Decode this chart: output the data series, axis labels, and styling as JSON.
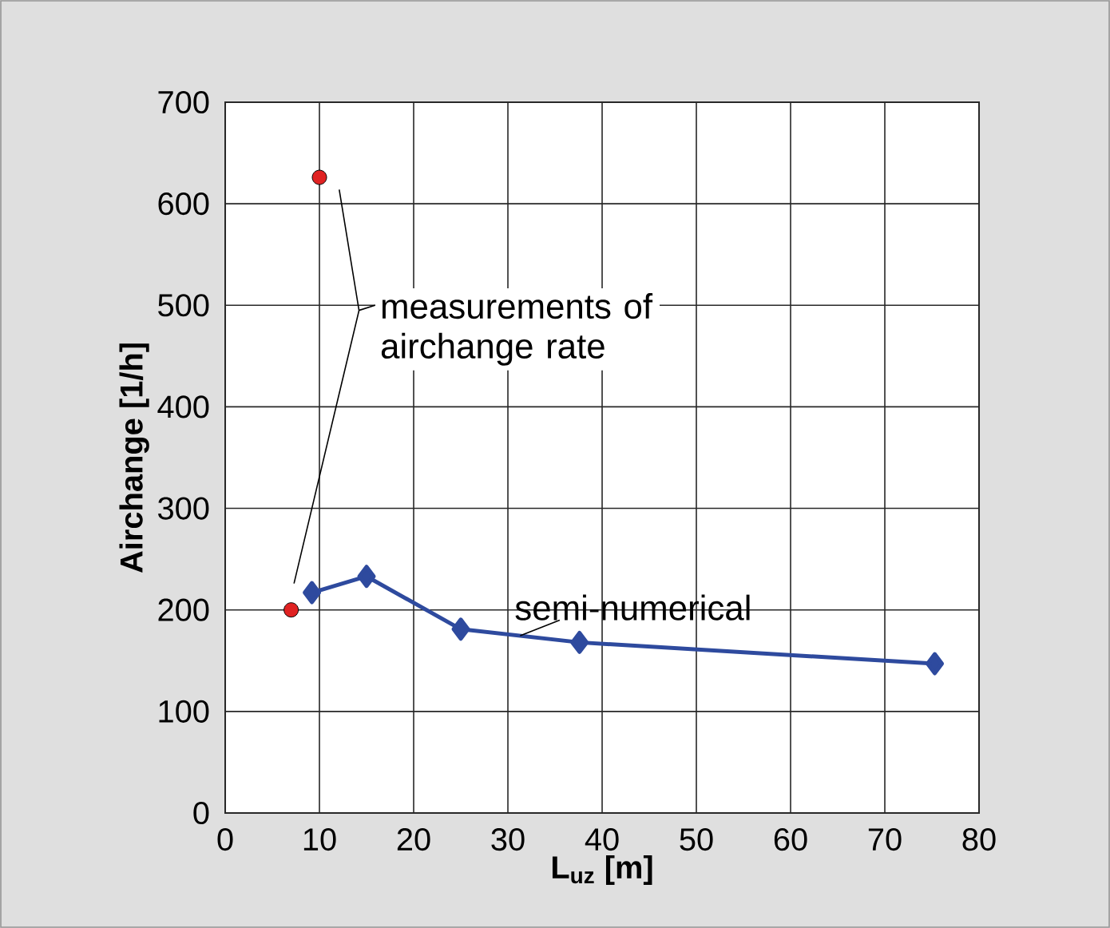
{
  "chart_data": {
    "type": "line",
    "xlabel": "L$_{uz}$ [m]",
    "ylabel": "Airchange [1/h]",
    "xlim": [
      0,
      80
    ],
    "xticks": [
      0,
      10,
      20,
      30,
      40,
      50,
      60,
      70,
      80
    ],
    "ylim": [
      0,
      700
    ],
    "yticks": [
      0,
      100,
      200,
      300,
      400,
      500,
      600,
      700
    ],
    "grid": true,
    "series": [
      {
        "type": "scatter",
        "marker": "circle",
        "color": "#e02222",
        "x": [
          7,
          10
        ],
        "values": [
          200,
          626
        ]
      },
      {
        "marker": "diamond",
        "line_style": "solid",
        "color": "#2e4a9e",
        "x": [
          9.2,
          15,
          25,
          37.6,
          75.3
        ],
        "values": [
          217,
          233,
          181,
          168,
          147
        ]
      }
    ],
    "annotations": [
      "measurements of airchange rate",
      "semi-numerical"
    ]
  }
}
